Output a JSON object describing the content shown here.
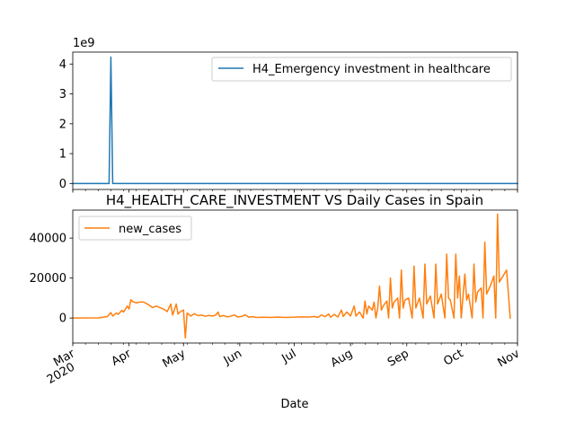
{
  "chart_data": [
    {
      "type": "line",
      "title": "",
      "xlabel": "",
      "ylabel": "",
      "offset_text": "1e9",
      "x_range": [
        "2020-03-01",
        "2020-11-01"
      ],
      "ylim": [
        -0.2,
        4.4
      ],
      "yticks": [
        0,
        1,
        2,
        3,
        4
      ],
      "ytick_labels": [
        "0",
        "1",
        "2",
        "3",
        "4"
      ],
      "xtick_labels_visible": false,
      "legend": {
        "location": "upper right",
        "entries": [
          "H4_Emergency investment in healthcare"
        ]
      },
      "grid": false,
      "series": [
        {
          "name": "H4_Emergency investment in healthcare",
          "color": "#1f77b4",
          "unit_multiplier": 1000000000,
          "points": [
            [
              "2020-03-01",
              0
            ],
            [
              "2020-03-21",
              0
            ],
            [
              "2020-03-22",
              4.23
            ],
            [
              "2020-03-23",
              0
            ],
            [
              "2020-11-01",
              0
            ]
          ]
        }
      ]
    },
    {
      "type": "line",
      "title": "H4_HEALTH_CARE_INVESTMENT VS Daily Cases in Spain",
      "xlabel": "Date",
      "ylabel": "",
      "x_range": [
        "2020-03-01",
        "2020-11-01"
      ],
      "ylim": [
        -12500,
        54000
      ],
      "yticks": [
        0,
        20000,
        40000
      ],
      "ytick_labels": [
        "0",
        "20000",
        "40000"
      ],
      "xticks": [
        {
          "date": "2020-03-01",
          "label": "Mar",
          "sublabel": "2020"
        },
        {
          "date": "2020-04-01",
          "label": "Apr"
        },
        {
          "date": "2020-05-01",
          "label": "May"
        },
        {
          "date": "2020-06-01",
          "label": "Jun"
        },
        {
          "date": "2020-07-01",
          "label": "Jul"
        },
        {
          "date": "2020-08-01",
          "label": "Aug"
        },
        {
          "date": "2020-09-01",
          "label": "Sep"
        },
        {
          "date": "2020-10-01",
          "label": "Oct"
        },
        {
          "date": "2020-11-01",
          "label": "Nov"
        }
      ],
      "legend": {
        "location": "upper left",
        "entries": [
          "new_cases"
        ]
      },
      "grid": false,
      "series": [
        {
          "name": "new_cases",
          "color": "#ff7f0e",
          "points": [
            [
              "2020-03-01",
              0
            ],
            [
              "2020-03-15",
              100
            ],
            [
              "2020-03-20",
              700
            ],
            [
              "2020-03-22",
              2700
            ],
            [
              "2020-03-23",
              1000
            ],
            [
              "2020-03-25",
              2500
            ],
            [
              "2020-03-26",
              1800
            ],
            [
              "2020-03-28",
              3800
            ],
            [
              "2020-03-29",
              3000
            ],
            [
              "2020-03-31",
              6000
            ],
            [
              "2020-04-01",
              4500
            ],
            [
              "2020-04-02",
              9200
            ],
            [
              "2020-04-03",
              8200
            ],
            [
              "2020-04-05",
              7600
            ],
            [
              "2020-04-07",
              8000
            ],
            [
              "2020-04-09",
              8000
            ],
            [
              "2020-04-12",
              6500
            ],
            [
              "2020-04-14",
              5200
            ],
            [
              "2020-04-16",
              6000
            ],
            [
              "2020-04-18",
              5200
            ],
            [
              "2020-04-20",
              4500
            ],
            [
              "2020-04-22",
              3200
            ],
            [
              "2020-04-24",
              7000
            ],
            [
              "2020-04-25",
              1500
            ],
            [
              "2020-04-27",
              7000
            ],
            [
              "2020-04-28",
              2000
            ],
            [
              "2020-04-29",
              3000
            ],
            [
              "2020-05-01",
              4000
            ],
            [
              "2020-05-02",
              -10000
            ],
            [
              "2020-05-03",
              2500
            ],
            [
              "2020-05-05",
              1000
            ],
            [
              "2020-05-07",
              2200
            ],
            [
              "2020-05-09",
              1200
            ],
            [
              "2020-05-11",
              1500
            ],
            [
              "2020-05-13",
              900
            ],
            [
              "2020-05-15",
              1300
            ],
            [
              "2020-05-17",
              1000
            ],
            [
              "2020-05-19",
              1600
            ],
            [
              "2020-05-20",
              3000
            ],
            [
              "2020-05-21",
              700
            ],
            [
              "2020-05-23",
              1300
            ],
            [
              "2020-05-25",
              600
            ],
            [
              "2020-05-27",
              900
            ],
            [
              "2020-05-29",
              1500
            ],
            [
              "2020-05-31",
              500
            ],
            [
              "2020-06-02",
              800
            ],
            [
              "2020-06-04",
              1600
            ],
            [
              "2020-06-06",
              400
            ],
            [
              "2020-06-08",
              700
            ],
            [
              "2020-06-10",
              300
            ],
            [
              "2020-06-14",
              400
            ],
            [
              "2020-06-18",
              300
            ],
            [
              "2020-06-22",
              500
            ],
            [
              "2020-06-26",
              300
            ],
            [
              "2020-07-01",
              400
            ],
            [
              "2020-07-05",
              600
            ],
            [
              "2020-07-09",
              500
            ],
            [
              "2020-07-12",
              800
            ],
            [
              "2020-07-14",
              300
            ],
            [
              "2020-07-16",
              1500
            ],
            [
              "2020-07-18",
              700
            ],
            [
              "2020-07-20",
              2000
            ],
            [
              "2020-07-21",
              400
            ],
            [
              "2020-07-23",
              1800
            ],
            [
              "2020-07-25",
              500
            ],
            [
              "2020-07-27",
              4000
            ],
            [
              "2020-07-28",
              800
            ],
            [
              "2020-07-30",
              3000
            ],
            [
              "2020-08-01",
              1000
            ],
            [
              "2020-08-03",
              6000
            ],
            [
              "2020-08-04",
              1000
            ],
            [
              "2020-08-06",
              3000
            ],
            [
              "2020-08-08",
              0
            ],
            [
              "2020-08-09",
              8500
            ],
            [
              "2020-08-10",
              2000
            ],
            [
              "2020-08-11",
              6000
            ],
            [
              "2020-08-13",
              4000
            ],
            [
              "2020-08-14",
              8000
            ],
            [
              "2020-08-15",
              0
            ],
            [
              "2020-08-16",
              5000
            ],
            [
              "2020-08-17",
              16000
            ],
            [
              "2020-08-18",
              4000
            ],
            [
              "2020-08-19",
              6000
            ],
            [
              "2020-08-21",
              8500
            ],
            [
              "2020-08-22",
              0
            ],
            [
              "2020-08-23",
              20000
            ],
            [
              "2020-08-24",
              5000
            ],
            [
              "2020-08-25",
              8000
            ],
            [
              "2020-08-27",
              10000
            ],
            [
              "2020-08-28",
              0
            ],
            [
              "2020-08-29",
              24000
            ],
            [
              "2020-08-30",
              5000
            ],
            [
              "2020-08-31",
              9000
            ],
            [
              "2020-09-02",
              10000
            ],
            [
              "2020-09-04",
              0
            ],
            [
              "2020-09-05",
              26000
            ],
            [
              "2020-09-06",
              5000
            ],
            [
              "2020-09-08",
              10000
            ],
            [
              "2020-09-10",
              0
            ],
            [
              "2020-09-11",
              27000
            ],
            [
              "2020-09-12",
              7000
            ],
            [
              "2020-09-14",
              11000
            ],
            [
              "2020-09-16",
              0
            ],
            [
              "2020-09-17",
              27000
            ],
            [
              "2020-09-18",
              7000
            ],
            [
              "2020-09-20",
              12000
            ],
            [
              "2020-09-22",
              0
            ],
            [
              "2020-09-23",
              32000
            ],
            [
              "2020-09-24",
              10000
            ],
            [
              "2020-09-25",
              9000
            ],
            [
              "2020-09-27",
              0
            ],
            [
              "2020-09-28",
              32000
            ],
            [
              "2020-09-29",
              10000
            ],
            [
              "2020-09-30",
              21000
            ],
            [
              "2020-10-01",
              0
            ],
            [
              "2020-10-03",
              22000
            ],
            [
              "2020-10-04",
              9000
            ],
            [
              "2020-10-05",
              12000
            ],
            [
              "2020-10-07",
              0
            ],
            [
              "2020-10-08",
              27000
            ],
            [
              "2020-10-09",
              8000
            ],
            [
              "2020-10-10",
              13000
            ],
            [
              "2020-10-12",
              15000
            ],
            [
              "2020-10-13",
              0
            ],
            [
              "2020-10-14",
              38000
            ],
            [
              "2020-10-15",
              12000
            ],
            [
              "2020-10-17",
              16000
            ],
            [
              "2020-10-19",
              21000
            ],
            [
              "2020-10-20",
              0
            ],
            [
              "2020-10-21",
              52000
            ],
            [
              "2020-10-22",
              18000
            ],
            [
              "2020-10-24",
              21000
            ],
            [
              "2020-10-26",
              24000
            ],
            [
              "2020-10-28",
              0
            ]
          ]
        }
      ]
    }
  ]
}
